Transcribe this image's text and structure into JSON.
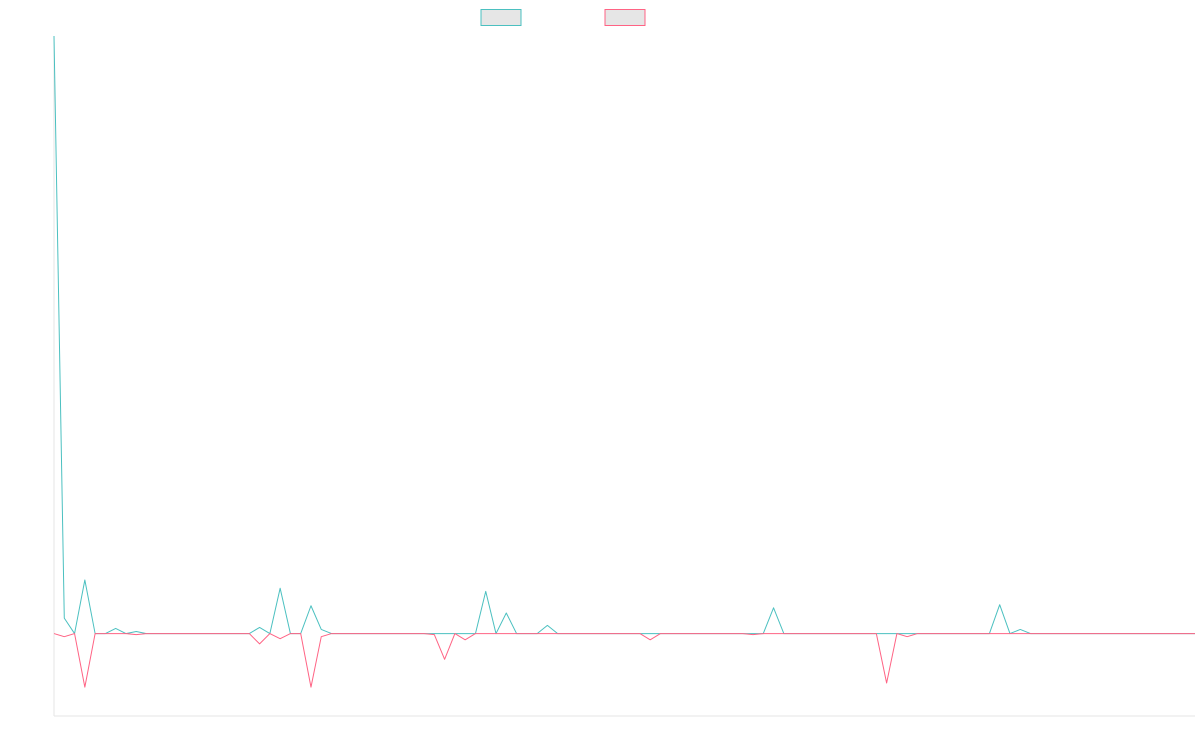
{
  "chart_data": {
    "type": "line",
    "title": "",
    "xlabel": "",
    "ylabel": "",
    "grid": false,
    "legend_placement": "top-center",
    "legend": [
      "",
      ""
    ],
    "ylim": [
      -80,
      580
    ],
    "xlim": [
      0,
      111
    ],
    "series": [
      {
        "color": "#4bc0c0",
        "values": [
          580,
          15,
          0,
          52,
          0,
          0,
          5,
          0,
          2,
          0,
          0,
          0,
          0,
          0,
          0,
          0,
          0,
          0,
          0,
          0,
          6,
          0,
          44,
          0,
          0,
          27,
          4,
          0,
          0,
          0,
          0,
          0,
          0,
          0,
          0,
          0,
          0,
          0,
          0,
          0,
          0,
          0,
          41,
          0,
          20,
          0,
          0,
          0,
          8,
          0,
          0,
          0,
          0,
          0,
          0,
          0,
          0,
          0,
          0,
          0,
          0,
          0,
          0,
          0,
          0,
          0,
          0,
          0,
          0,
          0,
          25,
          0,
          0,
          0,
          0,
          0,
          0,
          0,
          0,
          0,
          0,
          0,
          0,
          0,
          0,
          0,
          0,
          0,
          0,
          0,
          0,
          0,
          28,
          0,
          4,
          0,
          0,
          0,
          0,
          0,
          0,
          0,
          0,
          0,
          0,
          0,
          0,
          0,
          0,
          0,
          0,
          0
        ]
      },
      {
        "color": "#ff6384",
        "values": [
          0,
          -3,
          0,
          -52,
          0,
          0,
          0,
          0,
          -1,
          0,
          0,
          0,
          0,
          0,
          0,
          0,
          0,
          0,
          0,
          0,
          -10,
          0,
          -5,
          0,
          0,
          -52,
          -3,
          0,
          0,
          0,
          0,
          0,
          0,
          0,
          0,
          0,
          0,
          -1,
          -25,
          0,
          -6,
          0,
          0,
          0,
          0,
          0,
          0,
          0,
          0,
          0,
          0,
          0,
          0,
          0,
          0,
          0,
          0,
          0,
          -6,
          0,
          0,
          0,
          0,
          0,
          0,
          0,
          0,
          0,
          -1,
          0,
          0,
          0,
          0,
          0,
          0,
          0,
          0,
          0,
          0,
          0,
          0,
          -48,
          0,
          -3,
          0,
          0,
          0,
          0,
          0,
          0,
          0,
          0,
          0,
          0,
          0,
          0,
          0,
          0,
          0,
          0,
          0,
          0,
          0,
          0,
          0,
          0,
          0,
          0,
          0,
          0,
          0,
          0
        ]
      }
    ]
  }
}
